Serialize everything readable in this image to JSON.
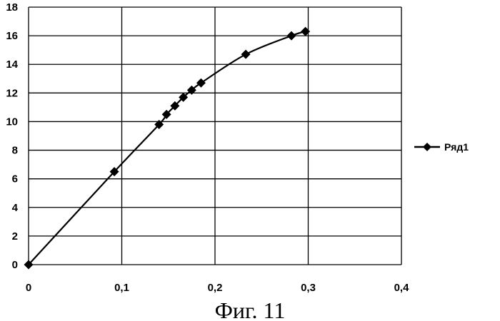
{
  "chart_data": {
    "type": "line",
    "title": "",
    "xlabel": "",
    "ylabel": "",
    "xlim": [
      0,
      0.4
    ],
    "ylim": [
      0,
      18
    ],
    "x_ticks": [
      "0",
      "0,1",
      "0,2",
      "0,3",
      "0,4"
    ],
    "y_ticks": [
      "0",
      "2",
      "4",
      "6",
      "8",
      "10",
      "12",
      "14",
      "16",
      "18"
    ],
    "grid": true,
    "legend_position": "right",
    "series": [
      {
        "name": "Ряд1",
        "color": "#000000",
        "marker": "diamond",
        "smooth": true,
        "x": [
          0,
          0.092,
          0.14,
          0.148,
          0.157,
          0.166,
          0.175,
          0.185,
          0.233,
          0.282,
          0.297
        ],
        "y": [
          0,
          6.5,
          9.8,
          10.5,
          11.1,
          11.7,
          12.2,
          12.7,
          14.7,
          16.0,
          16.3
        ]
      }
    ]
  },
  "caption": "Фиг. 11"
}
